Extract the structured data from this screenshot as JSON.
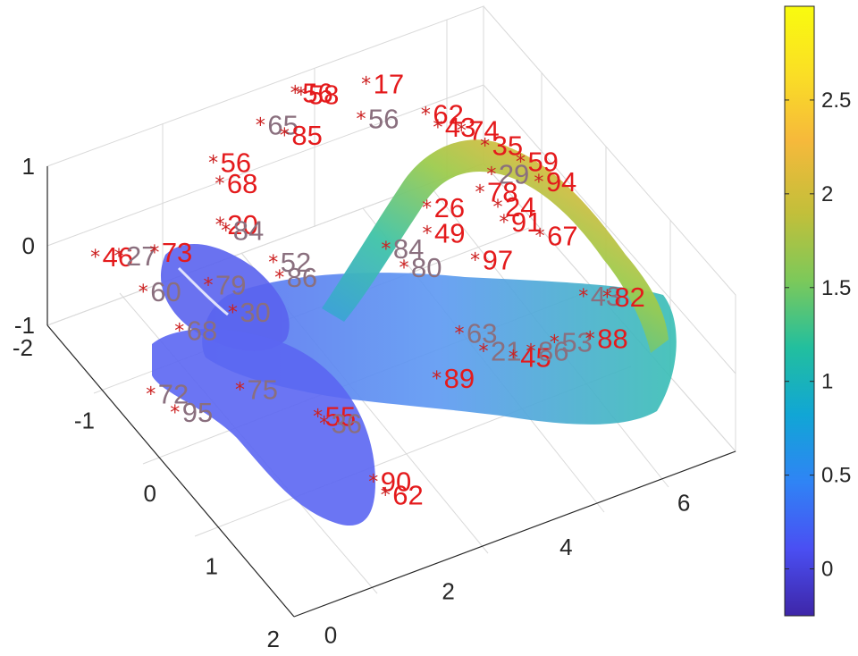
{
  "chart_data": {
    "type": "surface3d",
    "colorbar": {
      "range": [
        -0.25,
        3.0
      ],
      "ticks": [
        0,
        0.5,
        1,
        1.5,
        2,
        2.5
      ],
      "tick_labels": [
        "0",
        "0.5",
        "1",
        "1.5",
        "2",
        "2.5"
      ],
      "colormap": "parula",
      "colors": [
        "#3e26a8",
        "#4a4ff3",
        "#2f84f5",
        "#11a6d5",
        "#22bf9e",
        "#7cc95a",
        "#c2bf3a",
        "#f6b93b",
        "#fadf25",
        "#f9fb0e"
      ]
    },
    "axes": {
      "x": {
        "ticks": [
          0,
          2,
          4,
          6
        ],
        "tick_labels": [
          "0",
          "2",
          "4",
          "6"
        ],
        "range": [
          -0.5,
          7
        ]
      },
      "y": {
        "ticks": [
          -2,
          -1,
          0,
          1,
          2
        ],
        "tick_labels": [
          "-2",
          "-1",
          "0",
          "1",
          "2"
        ],
        "range": [
          -2,
          2
        ]
      },
      "z": {
        "ticks": [
          -1,
          0,
          1
        ],
        "tick_labels": [
          "-1",
          "0",
          "1"
        ],
        "range": [
          -1,
          1
        ]
      },
      "grid": true,
      "box": true
    },
    "marker": {
      "symbol": "*",
      "color": "#cc2222"
    },
    "point_labels": [
      {
        "text": "65",
        "tone": "gray",
        "x": 2.7,
        "y": -1.6,
        "z": 1.0
      },
      {
        "text": "56",
        "tone": "red",
        "x": 3.5,
        "y": -1.8,
        "z": 1.0
      },
      {
        "text": "58",
        "tone": "red",
        "x": 3.6,
        "y": -1.8,
        "z": 0.95
      },
      {
        "text": "85",
        "tone": "red",
        "x": 2.9,
        "y": -1.4,
        "z": 1.0
      },
      {
        "text": "17",
        "tone": "red",
        "x": 4.6,
        "y": -1.7,
        "z": 0.9
      },
      {
        "text": "56",
        "tone": "gray",
        "x": 4.2,
        "y": -1.4,
        "z": 0.85
      },
      {
        "text": "68",
        "tone": "red",
        "x": 1.8,
        "y": -1.4,
        "z": 0.7
      },
      {
        "text": "56",
        "tone": "red",
        "x": 1.9,
        "y": -1.6,
        "z": 0.75
      },
      {
        "text": "62",
        "tone": "red",
        "x": 5.3,
        "y": -1.4,
        "z": 0.6
      },
      {
        "text": "43",
        "tone": "red",
        "x": 5.4,
        "y": -1.3,
        "z": 0.5
      },
      {
        "text": "74",
        "tone": "red",
        "x": 5.8,
        "y": -1.3,
        "z": 0.35
      },
      {
        "text": "20",
        "tone": "red",
        "x": 1.7,
        "y": -1.3,
        "z": 0.3
      },
      {
        "text": "84",
        "tone": "gray",
        "x": 1.8,
        "y": -1.3,
        "z": 0.2
      },
      {
        "text": "35",
        "tone": "red",
        "x": 6.2,
        "y": -1.3,
        "z": 0.05
      },
      {
        "text": "29",
        "tone": "gray",
        "x": 6.1,
        "y": -1.1,
        "z": -0.1
      },
      {
        "text": "59",
        "tone": "red",
        "x": 6.7,
        "y": -1.2,
        "z": -0.2
      },
      {
        "text": "94",
        "tone": "red",
        "x": 6.8,
        "y": -1.0,
        "z": -0.3
      },
      {
        "text": "78",
        "tone": "red",
        "x": 5.8,
        "y": -1.0,
        "z": -0.15
      },
      {
        "text": "24",
        "tone": "red",
        "x": 6.0,
        "y": -0.9,
        "z": -0.3
      },
      {
        "text": "91",
        "tone": "red",
        "x": 6.0,
        "y": -0.8,
        "z": -0.4
      },
      {
        "text": "67",
        "tone": "red",
        "x": 6.4,
        "y": -0.6,
        "z": -0.5
      },
      {
        "text": "26",
        "tone": "red",
        "x": 4.9,
        "y": -1.0,
        "z": -0.1
      },
      {
        "text": "49",
        "tone": "red",
        "x": 4.8,
        "y": -0.9,
        "z": -0.3
      },
      {
        "text": "84",
        "tone": "gray",
        "x": 4.1,
        "y": -0.9,
        "z": -0.3
      },
      {
        "text": "80",
        "tone": "gray",
        "x": 4.3,
        "y": -0.8,
        "z": -0.5
      },
      {
        "text": "97",
        "tone": "red",
        "x": 5.3,
        "y": -0.6,
        "z": -0.5
      },
      {
        "text": "43",
        "tone": "gray",
        "x": 6.3,
        "y": 0.2,
        "z": -0.5
      },
      {
        "text": "82",
        "tone": "red",
        "x": 6.6,
        "y": 0.3,
        "z": -0.5
      },
      {
        "text": "63",
        "tone": "gray",
        "x": 4.3,
        "y": 0.1,
        "z": -0.5
      },
      {
        "text": "89",
        "tone": "red",
        "x": 3.6,
        "y": 0.4,
        "z": -0.6
      },
      {
        "text": "21",
        "tone": "gray",
        "x": 4.5,
        "y": 0.3,
        "z": -0.6
      },
      {
        "text": "45",
        "tone": "red",
        "x": 4.9,
        "y": 0.4,
        "z": -0.7
      },
      {
        "text": "86",
        "tone": "gray",
        "x": 5.2,
        "y": 0.4,
        "z": -0.7
      },
      {
        "text": "53",
        "tone": "gray",
        "x": 5.6,
        "y": 0.4,
        "z": -0.7
      },
      {
        "text": "88",
        "tone": "red",
        "x": 6.1,
        "y": 0.5,
        "z": -0.7
      },
      {
        "text": "46",
        "tone": "red",
        "x": 0.0,
        "y": -1.7,
        "z": 0.0
      },
      {
        "text": "27",
        "tone": "gray",
        "x": 0.4,
        "y": -1.7,
        "z": -0.1
      },
      {
        "text": "73",
        "tone": "red",
        "x": 0.9,
        "y": -1.6,
        "z": -0.1
      },
      {
        "text": "60",
        "tone": "gray",
        "x": 0.5,
        "y": -1.4,
        "z": -0.3
      },
      {
        "text": "79",
        "tone": "gray",
        "x": 1.5,
        "y": -1.3,
        "z": -0.4
      },
      {
        "text": "52",
        "tone": "gray",
        "x": 2.5,
        "y": -1.2,
        "z": -0.3
      },
      {
        "text": "86",
        "tone": "gray",
        "x": 2.5,
        "y": -1.1,
        "z": -0.4
      },
      {
        "text": "30",
        "tone": "gray",
        "x": 1.6,
        "y": -1.0,
        "z": -0.5
      },
      {
        "text": "68",
        "tone": "gray",
        "x": 0.8,
        "y": -1.1,
        "z": -0.6
      },
      {
        "text": "72",
        "tone": "gray",
        "x": 0.0,
        "y": -0.8,
        "z": -0.9
      },
      {
        "text": "95",
        "tone": "gray",
        "x": 0.2,
        "y": -0.6,
        "z": -1.0
      },
      {
        "text": "75",
        "tone": "gray",
        "x": 1.2,
        "y": -0.5,
        "z": -0.9
      },
      {
        "text": "55",
        "tone": "red",
        "x": 2.0,
        "y": 0.0,
        "z": -1.0
      },
      {
        "text": "36",
        "tone": "gray",
        "x": 2.0,
        "y": 0.1,
        "z": -1.0
      },
      {
        "text": "90",
        "tone": "red",
        "x": 2.0,
        "y": 0.9,
        "z": -1.0
      },
      {
        "text": "62",
        "tone": "red",
        "x": 2.1,
        "y": 1.0,
        "z": -1.1
      }
    ]
  }
}
